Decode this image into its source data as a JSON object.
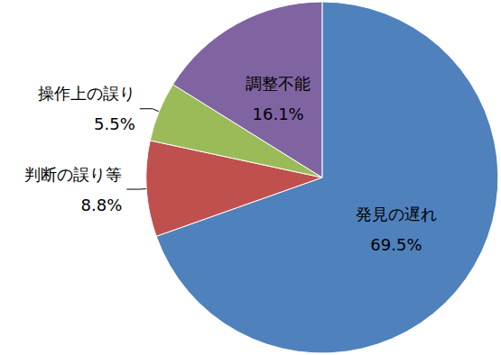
{
  "chart_data": {
    "type": "pie",
    "categories": [
      "発見の遅れ",
      "判断の誤り等",
      "操作上の誤り",
      "調整不能"
    ],
    "values": [
      69.5,
      8.8,
      5.5,
      16.1
    ],
    "value_labels": [
      "69.5%",
      "8.8%",
      "5.5%",
      "16.1%"
    ],
    "colors": [
      "#4f81bd",
      "#c0504d",
      "#9bbb59",
      "#8064a2"
    ],
    "data_labels": true
  }
}
